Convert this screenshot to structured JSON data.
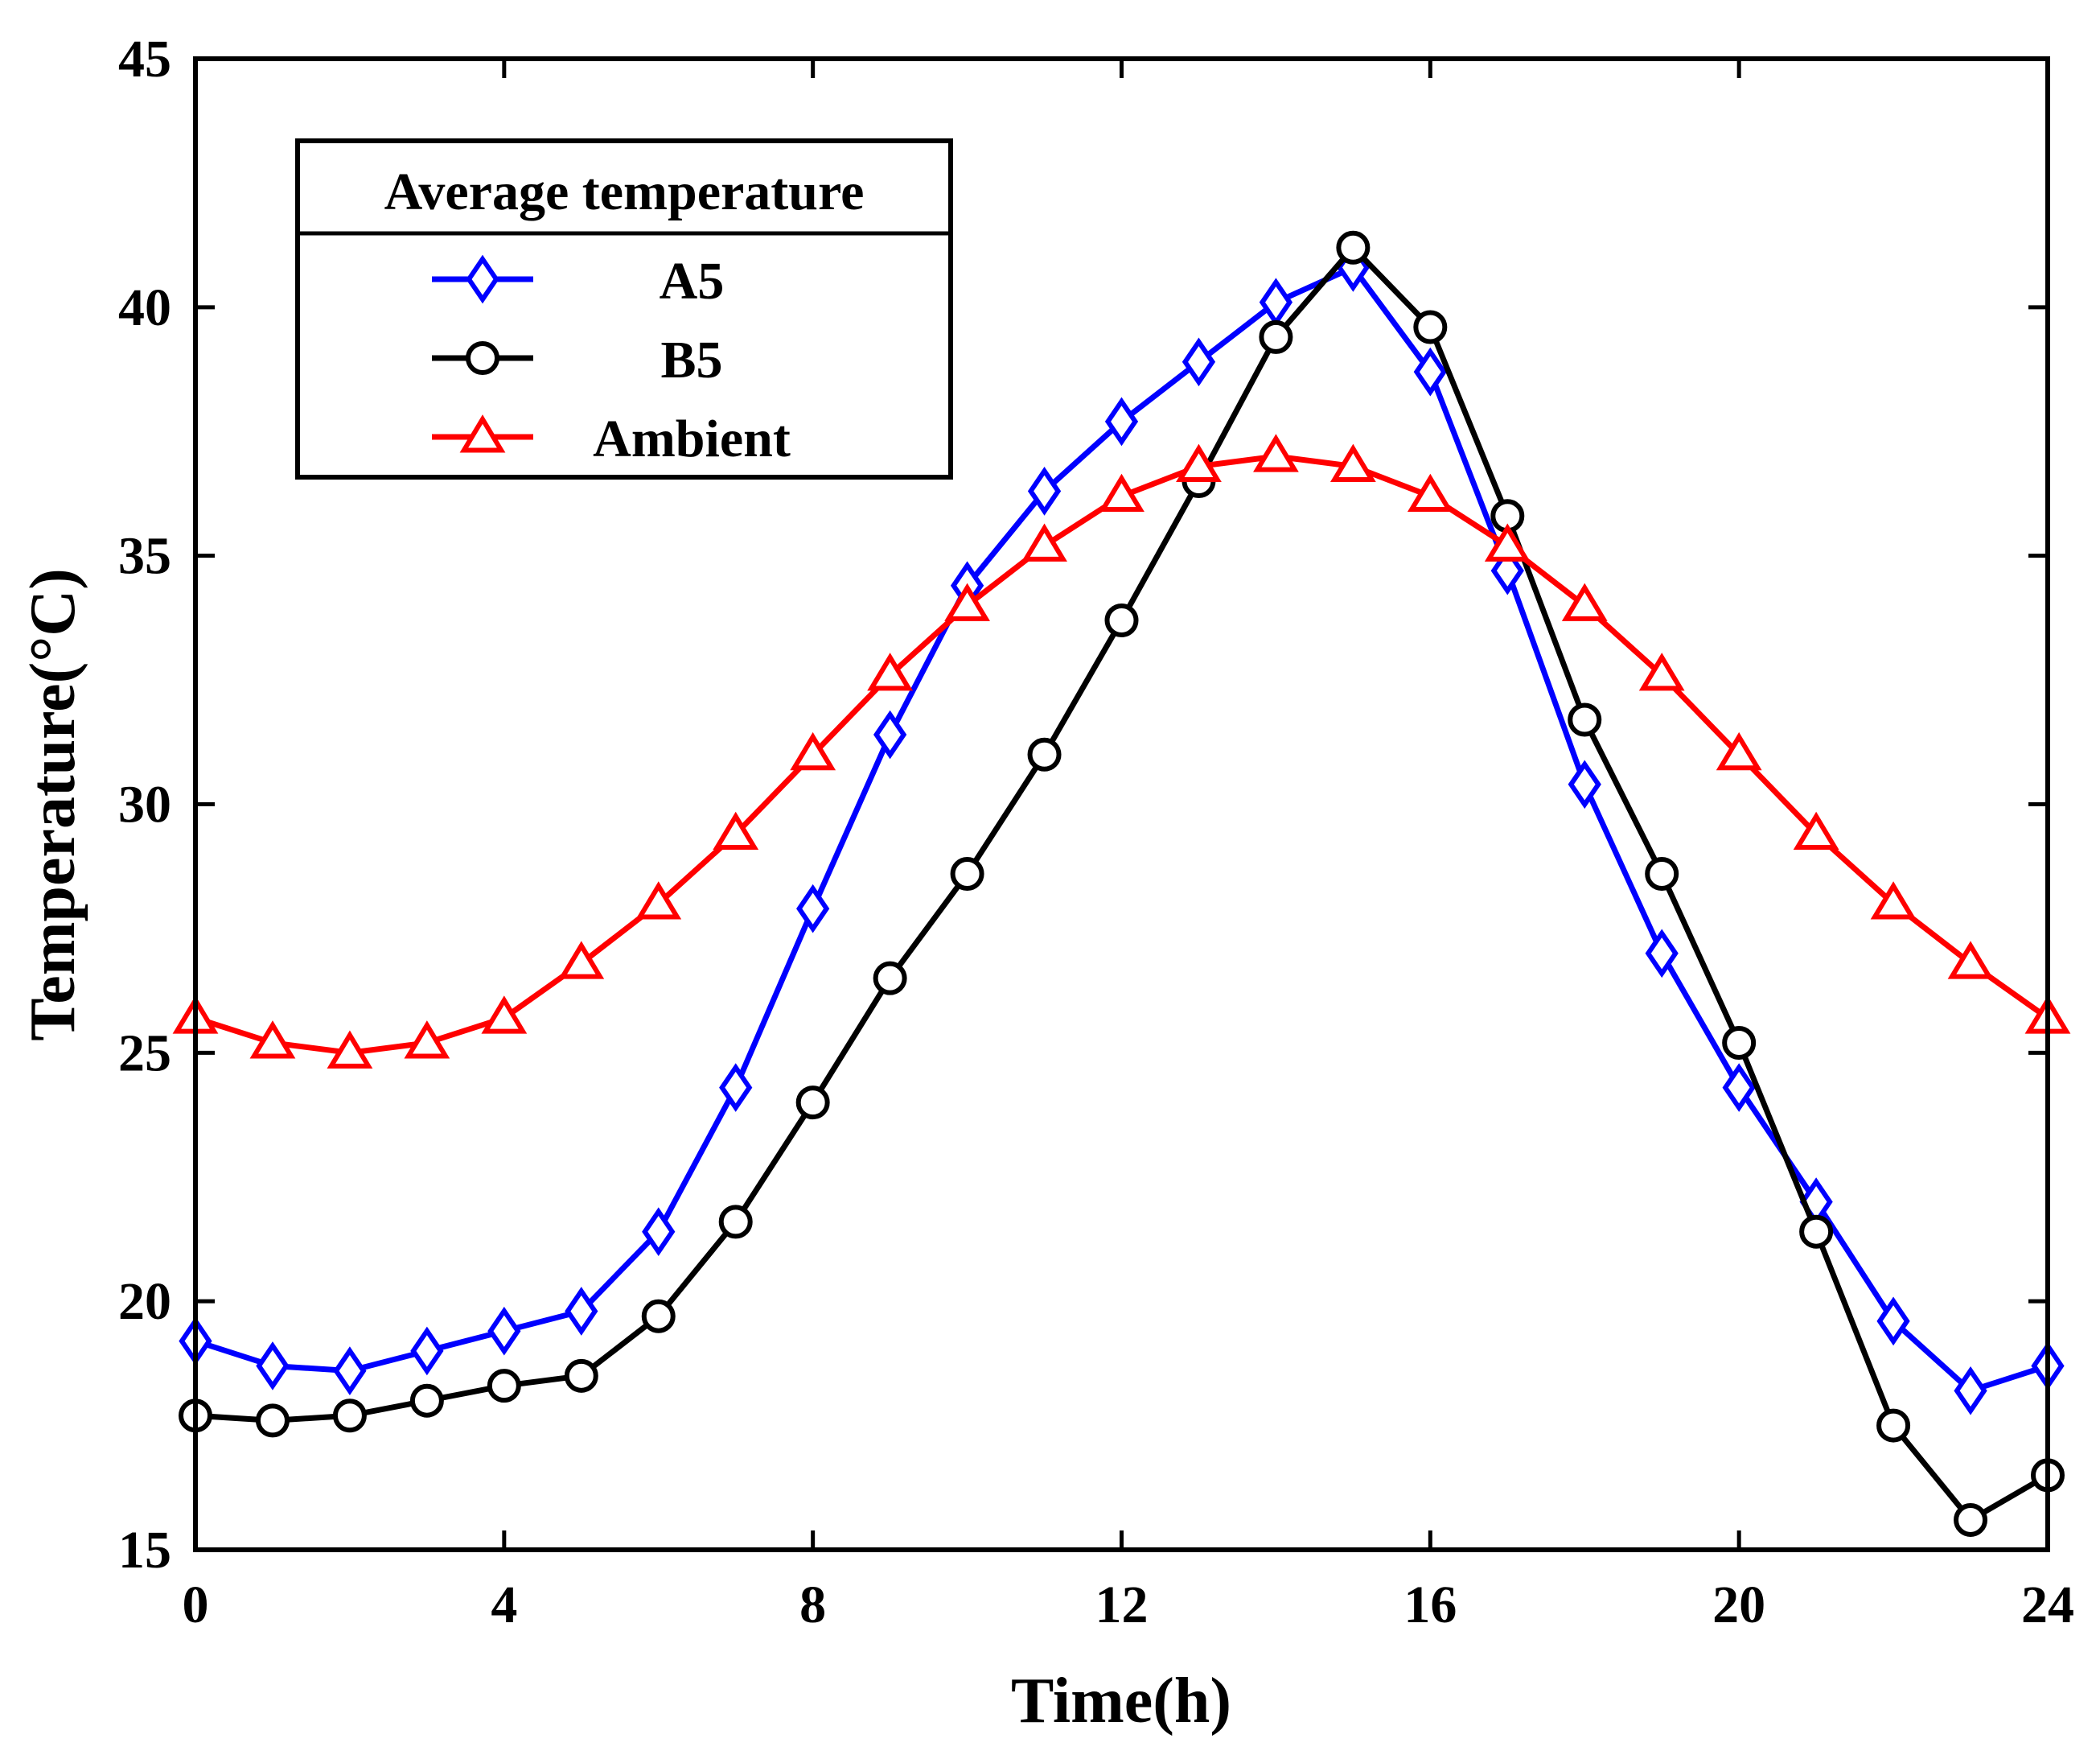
{
  "chart_data": {
    "type": "line",
    "xlabel": "Time(h)",
    "ylabel": "Temperature(°C)",
    "xlim": [
      0,
      24
    ],
    "ylim": [
      15,
      45
    ],
    "xticks": [
      0,
      4,
      8,
      12,
      16,
      20,
      24
    ],
    "yticks": [
      15,
      20,
      25,
      30,
      35,
      40,
      45
    ],
    "grid": false,
    "legend": {
      "title": "Average temperature",
      "placement": "top-left"
    },
    "x": [
      0,
      1,
      2,
      3,
      4,
      5,
      6,
      7,
      8,
      9,
      10,
      11,
      12,
      13,
      14,
      15,
      16,
      17,
      18,
      19,
      20,
      21,
      22,
      23,
      24
    ],
    "series": [
      {
        "name": "A5",
        "color": "#0000ff",
        "marker": "diamond",
        "values": [
          19.2,
          18.7,
          18.6,
          19.0,
          19.4,
          19.8,
          21.4,
          24.3,
          27.9,
          31.4,
          34.4,
          36.3,
          37.7,
          38.9,
          40.1,
          40.8,
          38.7,
          34.7,
          30.4,
          27.0,
          24.3,
          22.0,
          19.6,
          18.2,
          18.7
        ]
      },
      {
        "name": "B5",
        "color": "#000000",
        "marker": "circle",
        "values": [
          17.7,
          17.6,
          17.7,
          18.0,
          18.3,
          18.5,
          19.7,
          21.6,
          24.0,
          26.5,
          28.6,
          31.0,
          33.7,
          36.5,
          39.4,
          41.2,
          39.6,
          35.8,
          31.7,
          28.6,
          25.2,
          21.4,
          17.5,
          15.6,
          16.5
        ]
      },
      {
        "name": "Ambient",
        "color": "#ff0000",
        "marker": "triangle",
        "values": [
          25.7,
          25.2,
          25.0,
          25.2,
          25.7,
          26.8,
          28.0,
          29.4,
          31.0,
          32.6,
          34.0,
          35.2,
          36.2,
          36.8,
          37.0,
          36.8,
          36.2,
          35.2,
          34.0,
          32.6,
          31.0,
          29.4,
          28.0,
          26.8,
          25.7
        ]
      }
    ]
  }
}
